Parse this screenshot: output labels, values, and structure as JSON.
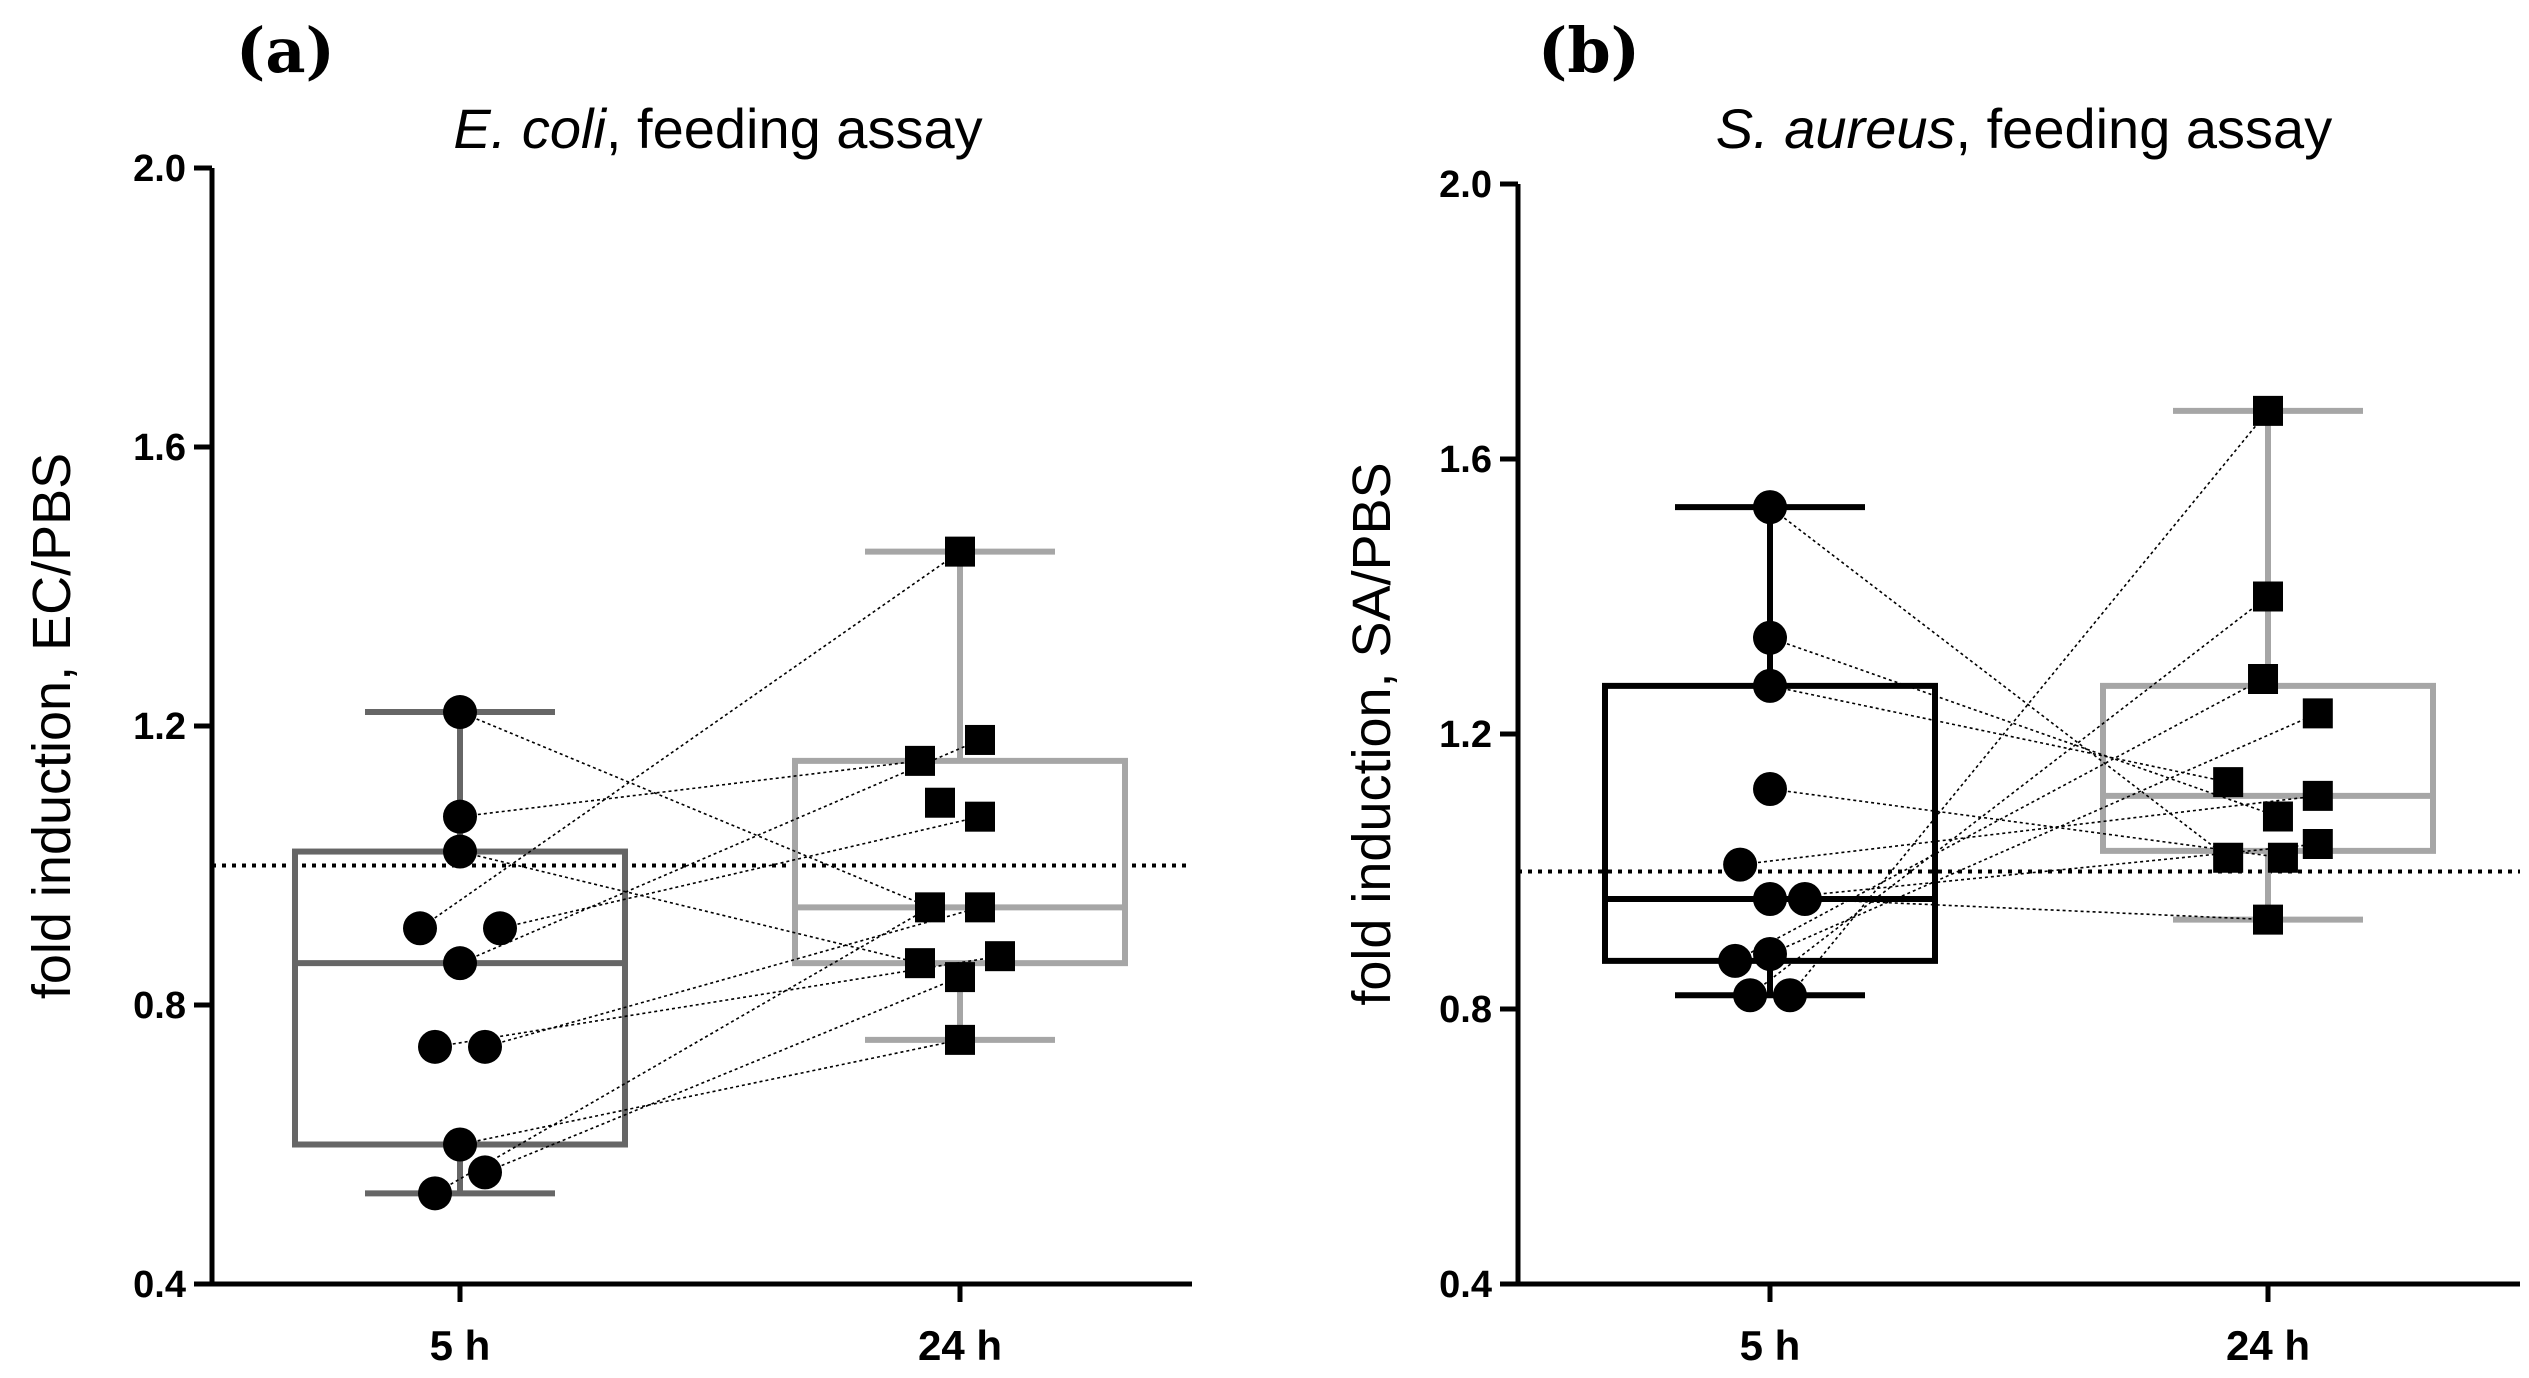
{
  "chart_data": [
    {
      "type": "box",
      "panel_label": "(a)",
      "title_italic": "E. coli",
      "title_rest": ", feeding assay",
      "ylabel": "fold induction, EC/PBS",
      "ylim": [
        0.4,
        2.0
      ],
      "yticks": [
        "0.4",
        "0.8",
        "1.2",
        "1.6",
        "2.0"
      ],
      "reference_line": 1.0,
      "categories": [
        "5 h",
        "24 h"
      ],
      "boxes": [
        {
          "category": "5 h",
          "color": "#666666",
          "whisker_low": 0.53,
          "q1": 0.6,
          "median": 0.86,
          "q3": 1.02,
          "whisker_high": 1.22
        },
        {
          "category": "24 h",
          "color": "#a6a6a6",
          "whisker_low": 0.75,
          "q1": 0.86,
          "median": 0.94,
          "q3": 1.15,
          "whisker_high": 1.45
        }
      ],
      "points": {
        "5 h": [
          {
            "value": 0.53,
            "offset": -0.05
          },
          {
            "value": 0.56,
            "offset": 0.05
          },
          {
            "value": 0.6,
            "offset": 0.0
          },
          {
            "value": 0.74,
            "offset": -0.05
          },
          {
            "value": 0.74,
            "offset": 0.05
          },
          {
            "value": 0.86,
            "offset": 0.0
          },
          {
            "value": 0.91,
            "offset": -0.08
          },
          {
            "value": 0.91,
            "offset": 0.08
          },
          {
            "value": 1.02,
            "offset": 0.0
          },
          {
            "value": 1.07,
            "offset": 0.0
          },
          {
            "value": 1.22,
            "offset": 0.0
          }
        ],
        "24 h": [
          {
            "value": 0.75,
            "offset": 0.0
          },
          {
            "value": 0.84,
            "offset": 0.0
          },
          {
            "value": 0.86,
            "offset": -0.08
          },
          {
            "value": 0.87,
            "offset": 0.08
          },
          {
            "value": 0.94,
            "offset": -0.06
          },
          {
            "value": 0.94,
            "offset": 0.04
          },
          {
            "value": 1.07,
            "offset": 0.04
          },
          {
            "value": 1.09,
            "offset": -0.04
          },
          {
            "value": 1.15,
            "offset": -0.08
          },
          {
            "value": 1.18,
            "offset": 0.04
          },
          {
            "value": 1.45,
            "offset": 0.0
          }
        ]
      },
      "pairs": [
        [
          0,
          4
        ],
        [
          1,
          1
        ],
        [
          2,
          0
        ],
        [
          3,
          3
        ],
        [
          4,
          5
        ],
        [
          5,
          9
        ],
        [
          6,
          10
        ],
        [
          7,
          6
        ],
        [
          8,
          2
        ],
        [
          9,
          8
        ],
        [
          10,
          4
        ]
      ]
    },
    {
      "type": "box",
      "panel_label": "(b)",
      "title_italic": "S. aureus",
      "title_rest": ", feeding assay",
      "ylabel": "fold induction, SA/PBS",
      "ylim": [
        0.4,
        2.0
      ],
      "yticks": [
        "0.4",
        "0.8",
        "1.2",
        "1.6",
        "2.0"
      ],
      "reference_line": 1.0,
      "categories": [
        "5 h",
        "24 h"
      ],
      "boxes": [
        {
          "category": "5 h",
          "color": "#000000",
          "whisker_low": 0.82,
          "q1": 0.87,
          "median": 0.96,
          "q3": 1.27,
          "whisker_high": 1.53
        },
        {
          "category": "24 h",
          "color": "#a6a6a6",
          "whisker_low": 0.93,
          "q1": 1.03,
          "median": 1.11,
          "q3": 1.27,
          "whisker_high": 1.67
        }
      ],
      "points": {
        "5 h": [
          {
            "value": 0.82,
            "offset": -0.04
          },
          {
            "value": 0.82,
            "offset": 0.04
          },
          {
            "value": 0.87,
            "offset": -0.07
          },
          {
            "value": 0.88,
            "offset": 0.0
          },
          {
            "value": 0.96,
            "offset": 0.0
          },
          {
            "value": 0.96,
            "offset": 0.07
          },
          {
            "value": 1.01,
            "offset": -0.06
          },
          {
            "value": 1.12,
            "offset": 0.0
          },
          {
            "value": 1.27,
            "offset": 0.0
          },
          {
            "value": 1.34,
            "offset": 0.0
          },
          {
            "value": 1.53,
            "offset": 0.0
          }
        ],
        "24 h": [
          {
            "value": 0.93,
            "offset": 0.0
          },
          {
            "value": 1.02,
            "offset": -0.08
          },
          {
            "value": 1.02,
            "offset": 0.03
          },
          {
            "value": 1.04,
            "offset": 0.1
          },
          {
            "value": 1.08,
            "offset": 0.02
          },
          {
            "value": 1.11,
            "offset": 0.1
          },
          {
            "value": 1.13,
            "offset": -0.08
          },
          {
            "value": 1.23,
            "offset": 0.1
          },
          {
            "value": 1.28,
            "offset": -0.01
          },
          {
            "value": 1.4,
            "offset": 0.0
          },
          {
            "value": 1.67,
            "offset": 0.0
          }
        ]
      },
      "pairs": [
        [
          0,
          9
        ],
        [
          1,
          10
        ],
        [
          2,
          8
        ],
        [
          3,
          7
        ],
        [
          4,
          3
        ],
        [
          5,
          0
        ],
        [
          6,
          5
        ],
        [
          7,
          2
        ],
        [
          8,
          6
        ],
        [
          9,
          4
        ],
        [
          10,
          1
        ]
      ]
    }
  ]
}
